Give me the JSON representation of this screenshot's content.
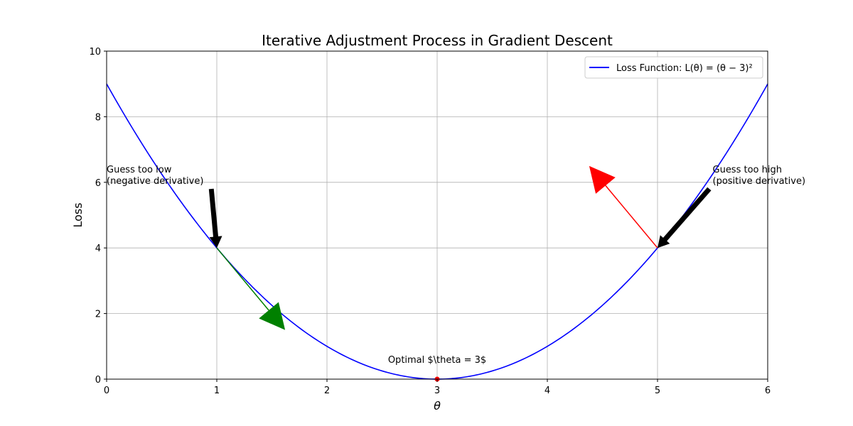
{
  "chart_data": {
    "type": "line",
    "title": "Iterative Adjustment Process in Gradient Descent",
    "xlabel": "θ",
    "ylabel": "Loss",
    "xlim": [
      0,
      6
    ],
    "ylim": [
      0,
      10
    ],
    "x_ticks": [
      0,
      1,
      2,
      3,
      4,
      5,
      6
    ],
    "y_ticks": [
      0,
      2,
      4,
      6,
      8,
      10
    ],
    "grid": true,
    "legend_position": "top-right",
    "series": [
      {
        "name": "Loss Function: L(θ) = (θ − 3)²",
        "formula": "(θ - 3)^2",
        "color": "#0000ff",
        "x": [
          0,
          0.5,
          1,
          1.5,
          2,
          2.5,
          3,
          3.5,
          4,
          4.5,
          5,
          5.5,
          6
        ],
        "y": [
          9,
          6.25,
          4,
          2.25,
          1,
          0.25,
          0,
          0.25,
          1,
          2.25,
          4,
          6.25,
          9
        ]
      }
    ],
    "optimal_point": {
      "x": 3,
      "y": 0,
      "color": "#ff0000",
      "label": "Optimal $\\theta = 3$"
    },
    "step_arrows": [
      {
        "from": [
          1,
          4
        ],
        "to": [
          1.62,
          1.5
        ],
        "color": "#008000"
      },
      {
        "from": [
          5,
          4
        ],
        "to": [
          4.38,
          6.5
        ],
        "color": "#ff0000"
      }
    ],
    "annotations": [
      {
        "text_lines": [
          "Guess too low",
          "(negative derivative)"
        ],
        "text_at": [
          0,
          6.3
        ],
        "arrow_from": [
          0.95,
          5.8
        ],
        "arrow_to": [
          1,
          4
        ]
      },
      {
        "text_lines": [
          "Guess too high",
          "(positive derivative)"
        ],
        "text_at": [
          5.5,
          6.3
        ],
        "arrow_from": [
          5.47,
          5.8
        ],
        "arrow_to": [
          5,
          4
        ]
      }
    ]
  }
}
